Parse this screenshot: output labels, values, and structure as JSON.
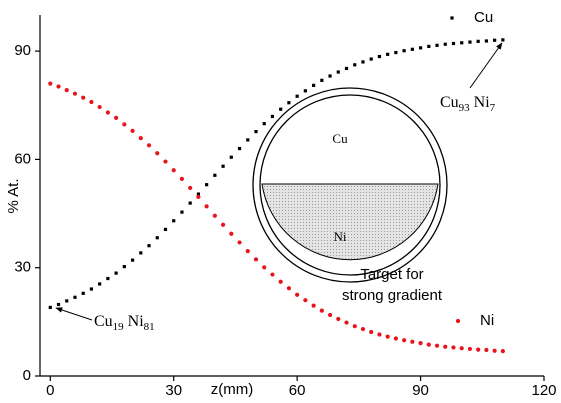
{
  "chart_data": {
    "type": "scatter",
    "x_label": "z(mm)",
    "y_label": "% At.",
    "x": [
      0,
      2,
      4,
      6,
      8,
      10,
      12,
      14,
      16,
      18,
      20,
      22,
      24,
      26,
      28,
      30,
      32,
      34,
      36,
      38,
      40,
      42,
      44,
      46,
      48,
      50,
      52,
      54,
      56,
      58,
      60,
      62,
      64,
      66,
      68,
      70,
      72,
      74,
      76,
      78,
      80,
      82,
      84,
      86,
      88,
      90,
      92,
      94,
      96,
      98,
      100,
      102,
      104,
      106,
      108,
      110
    ],
    "series": [
      {
        "name": "Cu",
        "color": "#000000",
        "marker": "square",
        "values": [
          19.0,
          19.8,
          20.8,
          21.8,
          22.9,
          24.1,
          25.5,
          27.0,
          28.5,
          30.3,
          32.1,
          34.1,
          36.1,
          38.3,
          40.6,
          43.0,
          45.4,
          47.9,
          50.4,
          53.0,
          55.6,
          58.1,
          60.6,
          63.0,
          65.4,
          67.7,
          69.9,
          71.9,
          73.9,
          75.7,
          77.5,
          79.0,
          80.5,
          81.9,
          83.1,
          84.2,
          85.2,
          86.2,
          87.0,
          87.8,
          88.5,
          89.1,
          89.6,
          90.1,
          90.5,
          90.9,
          91.3,
          91.6,
          91.9,
          92.1,
          92.3,
          92.5,
          92.7,
          92.8,
          93.0,
          93.1
        ]
      },
      {
        "name": "Ni",
        "color": "#e8141b",
        "marker": "circle",
        "values": [
          81.0,
          80.2,
          79.2,
          78.2,
          77.1,
          75.9,
          74.5,
          73.0,
          71.5,
          69.7,
          67.9,
          65.9,
          63.9,
          61.7,
          59.4,
          57.0,
          54.6,
          52.1,
          49.6,
          47.0,
          44.4,
          41.9,
          39.4,
          37.0,
          34.6,
          32.3,
          30.1,
          28.1,
          26.1,
          24.3,
          22.5,
          21.0,
          19.5,
          18.1,
          16.9,
          15.8,
          14.8,
          13.8,
          13.0,
          12.2,
          11.5,
          10.9,
          10.4,
          9.9,
          9.5,
          9.1,
          8.7,
          8.4,
          8.1,
          7.9,
          7.7,
          7.5,
          7.3,
          7.2,
          7.0,
          6.9
        ]
      }
    ],
    "xlim": [
      -2.5,
      120
    ],
    "ylim": [
      0,
      100
    ],
    "xticks": [
      0,
      30,
      60,
      90,
      120
    ],
    "yticks": [
      0,
      30,
      60,
      90
    ],
    "annotations": [
      {
        "parts": [
          "Cu",
          "93",
          " Ni",
          "7"
        ]
      },
      {
        "parts": [
          "Cu",
          "19",
          " Ni",
          "81"
        ]
      },
      {
        "lines": [
          "Target for",
          "strong  gradient"
        ]
      }
    ],
    "inset": {
      "top_label": "Cu",
      "bottom_label": "Ni"
    }
  }
}
